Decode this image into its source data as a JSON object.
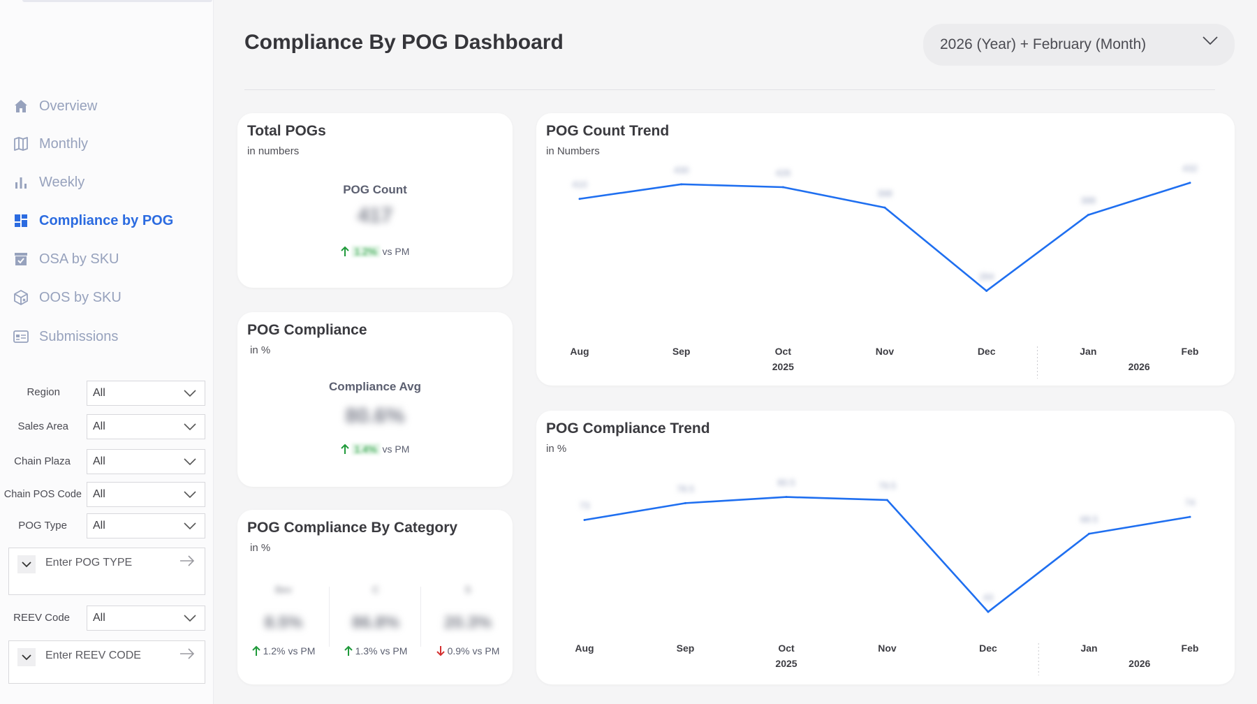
{
  "sidebar": {
    "nav": [
      {
        "label": "Overview",
        "icon": "home-icon",
        "active": false
      },
      {
        "label": "Monthly",
        "icon": "map-icon",
        "active": false
      },
      {
        "label": "Weekly",
        "icon": "bar-chart-icon",
        "active": false
      },
      {
        "label": "Compliance by POG",
        "icon": "dashboard-icon",
        "active": true
      },
      {
        "label": "OSA by SKU",
        "icon": "checklist-icon",
        "active": false
      },
      {
        "label": "OOS by SKU",
        "icon": "box-icon",
        "active": false
      },
      {
        "label": "Submissions",
        "icon": "form-icon",
        "active": false
      }
    ],
    "filters": [
      {
        "label": "Region",
        "value": "All"
      },
      {
        "label": "Sales Area",
        "value": "All"
      },
      {
        "label": "Chain Plaza",
        "value": "All"
      },
      {
        "label": "Chain POS Code",
        "value": "All"
      },
      {
        "label": "POG Type",
        "value": "All"
      }
    ],
    "pog_type_search": {
      "placeholder": "Enter POG TYPE"
    },
    "reev_filter": {
      "label": "REEV Code",
      "value": "All"
    },
    "reev_search": {
      "placeholder": "Enter REEV CODE"
    }
  },
  "header": {
    "title": "Compliance By POG Dashboard",
    "period": "2026 (Year) + February (Month)"
  },
  "total_pogs": {
    "title": "Total POGs",
    "subtitle": "in numbers",
    "kpi_label": "POG Count",
    "value": "417",
    "delta_text": "1.2%",
    "vs": "vs PM"
  },
  "pog_compliance": {
    "title": "POG Compliance",
    "subtitle": "in %",
    "kpi_label": "Compliance Avg",
    "value": "80.6%",
    "delta_text": "1.4%",
    "vs": "vs PM"
  },
  "by_category": {
    "title": "POG Compliance By Category",
    "subtitle": "in %",
    "items": [
      {
        "name": "Bev",
        "value": "8.5%",
        "delta": "1.2%",
        "dir": "up",
        "vs": "vs PM"
      },
      {
        "name": "C",
        "value": "86.8%",
        "delta": "1.3%",
        "dir": "up",
        "vs": "vs PM"
      },
      {
        "name": "S",
        "value": "20.3%",
        "delta": "0.9%",
        "dir": "down",
        "vs": "vs PM"
      }
    ]
  },
  "count_trend": {
    "title": "POG Count Trend",
    "subtitle": "in Numbers",
    "years": [
      "2025",
      "2026"
    ]
  },
  "compliance_trend": {
    "title": "POG Compliance Trend",
    "subtitle": "in %",
    "years": [
      "2025",
      "2026"
    ]
  },
  "chart_data": [
    {
      "type": "line",
      "title": "POG Count Trend",
      "x": [
        "Aug",
        "Sep",
        "Oct",
        "Nov",
        "Dec",
        "Jan",
        "Feb"
      ],
      "series": [
        {
          "values": [
            410,
            430,
            426,
            398,
            284,
            388,
            432
          ]
        }
      ],
      "ylim": [
        250,
        470
      ],
      "color": "#1f6ff0"
    },
    {
      "type": "line",
      "title": "POG Compliance Trend",
      "x": [
        "Aug",
        "Sep",
        "Oct",
        "Nov",
        "Dec",
        "Jan",
        "Feb"
      ],
      "series": [
        {
          "values": [
            73.0,
            78.5,
            80.5,
            79.5,
            43.0,
            68.5,
            74.0
          ]
        }
      ],
      "ylim": [
        38,
        95
      ],
      "color": "#1f6ff0"
    }
  ]
}
